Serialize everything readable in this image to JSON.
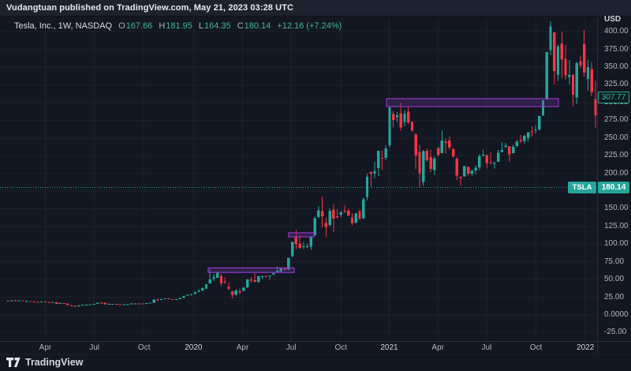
{
  "publish_bar": {
    "text": "Vudangtuan published on TradingView.com, May 21, 2023 03:28 UTC"
  },
  "legend": {
    "symbol_title": "Tesla, Inc., 1W, NASDAQ",
    "ohlc": [
      {
        "k": "O",
        "v": "167.66"
      },
      {
        "k": "H",
        "v": "181.95"
      },
      {
        "k": "L",
        "v": "164.35"
      },
      {
        "k": "C",
        "v": "180.14"
      }
    ],
    "change": "+12.16 (+7.24%)"
  },
  "price_axis": {
    "unit": "USD",
    "ticks": [
      {
        "label": "400.00",
        "price": 400
      },
      {
        "label": "375.00",
        "price": 375
      },
      {
        "label": "350.00",
        "price": 350
      },
      {
        "label": "325.00",
        "price": 325
      },
      {
        "label": "300.00",
        "price": 300
      },
      {
        "label": "275.00",
        "price": 275
      },
      {
        "label": "250.00",
        "price": 250
      },
      {
        "label": "225.00",
        "price": 225
      },
      {
        "label": "200.00",
        "price": 200
      },
      {
        "label": "175.00",
        "price": 175
      },
      {
        "label": "150.00",
        "price": 150
      },
      {
        "label": "125.00",
        "price": 125
      },
      {
        "label": "100.00",
        "price": 100
      },
      {
        "label": "75.00",
        "price": 75
      },
      {
        "label": "50.00",
        "price": 50
      },
      {
        "label": "25.00",
        "price": 25
      },
      {
        "label": "0.0000",
        "price": 0
      },
      {
        "label": "-25.00",
        "price": -25
      }
    ],
    "alert_label": "307.77",
    "symbol_label": "TSLA",
    "last_price_label": "180.14"
  },
  "time_axis": {
    "ticks": [
      {
        "label": "Apr",
        "week": 10,
        "year": false
      },
      {
        "label": "Jul",
        "week": 23.1,
        "year": false
      },
      {
        "label": "Oct",
        "week": 36.4,
        "year": false
      },
      {
        "label": "2020",
        "week": 49.6,
        "year": true
      },
      {
        "label": "Apr",
        "week": 62.7,
        "year": false
      },
      {
        "label": "Jul",
        "week": 75.7,
        "year": false
      },
      {
        "label": "Oct",
        "week": 89,
        "year": false
      },
      {
        "label": "2021",
        "week": 101.9,
        "year": true
      },
      {
        "label": "Apr",
        "week": 114.9,
        "year": false
      },
      {
        "label": "Jul",
        "week": 127.9,
        "year": false
      },
      {
        "label": "Oct",
        "week": 141.1,
        "year": false
      },
      {
        "label": "2022",
        "week": 154.3,
        "year": true
      }
    ]
  },
  "footer": {
    "brand": "TradingView"
  },
  "chart_data": {
    "type": "candlestick",
    "title": "Tesla, Inc., 1W, NASDAQ",
    "symbol": "TSLA",
    "interval": "1W",
    "currency": "USD",
    "ylim": [
      -37,
      421
    ],
    "grid": true,
    "current_price": 180.14,
    "alert_price": 307.77,
    "colors": {
      "up": "#26a69a",
      "down": "#f23645",
      "grid": "#1c202b",
      "zone_fill": "rgba(120,55,185,0.25)",
      "zone_border": "#9537c7",
      "price_line": "#26a69a"
    },
    "zones": [
      {
        "week_start": 53.5,
        "week_end": 76.5,
        "price_top": 66.5,
        "price_bottom": 60
      },
      {
        "week_start": 75.0,
        "week_end": 81.8,
        "price_top": 116,
        "price_bottom": 110.4
      },
      {
        "week_start": 101.2,
        "week_end": 147.1,
        "price_top": 305.5,
        "price_bottom": 294.3
      }
    ],
    "candles": [
      [
        20.2,
        20.4,
        18.9,
        19.8
      ],
      [
        19.9,
        21.1,
        19.4,
        20.9
      ],
      [
        20.9,
        21.3,
        20.2,
        20.4
      ],
      [
        20.5,
        20.9,
        20.2,
        20.6
      ],
      [
        20.6,
        20.7,
        19.5,
        19.6
      ],
      [
        19.7,
        20.8,
        19.4,
        19.7
      ],
      [
        19.6,
        19.7,
        18.4,
        19.0
      ],
      [
        19.0,
        19.6,
        18.2,
        18.4
      ],
      [
        18.4,
        18.9,
        17.7,
        18.3
      ],
      [
        18.2,
        18.9,
        17.5,
        18.7
      ],
      [
        18.8,
        19.3,
        18.0,
        18.3
      ],
      [
        18.3,
        18.5,
        17.6,
        17.9
      ],
      [
        17.9,
        18.3,
        17.5,
        18.2
      ],
      [
        17.8,
        17.9,
        15.5,
        15.7
      ],
      [
        15.8,
        17.2,
        15.5,
        17.0
      ],
      [
        16.8,
        16.9,
        15.9,
        16.0
      ],
      [
        15.9,
        16.1,
        13.7,
        14.1
      ],
      [
        13.6,
        14.0,
        12.3,
        12.7
      ],
      [
        12.8,
        13.1,
        11.9,
        12.3
      ],
      [
        12.2,
        13.7,
        11.8,
        13.6
      ],
      [
        13.7,
        14.6,
        13.4,
        14.3
      ],
      [
        14.4,
        15.3,
        14.2,
        14.6
      ],
      [
        14.7,
        15.2,
        14.4,
        14.9
      ],
      [
        15.1,
        15.9,
        14.8,
        15.5
      ],
      [
        15.5,
        17.4,
        15.4,
        17.2
      ],
      [
        17.3,
        17.8,
        16.6,
        17.1
      ],
      [
        17.1,
        17.7,
        15.0,
        15.2
      ],
      [
        15.3,
        16.2,
        15.1,
        15.6
      ],
      [
        15.4,
        15.8,
        15.1,
        15.7
      ],
      [
        15.6,
        15.7,
        14.5,
        14.7
      ],
      [
        14.8,
        15.2,
        14.0,
        14.1
      ],
      [
        14.1,
        15.2,
        14.0,
        15.0
      ],
      [
        15.0,
        15.5,
        14.6,
        15.2
      ],
      [
        15.2,
        16.5,
        15.2,
        16.3
      ],
      [
        16.3,
        16.5,
        15.8,
        16.1
      ],
      [
        16.1,
        16.4,
        15.5,
        16.1
      ],
      [
        16.0,
        16.4,
        14.9,
        15.4
      ],
      [
        15.4,
        16.6,
        15.2,
        16.5
      ],
      [
        16.5,
        17.3,
        16.3,
        17.1
      ],
      [
        17.1,
        22.4,
        16.8,
        21.9
      ],
      [
        21.9,
        22.6,
        20.2,
        20.9
      ],
      [
        21.0,
        23.1,
        20.9,
        22.5
      ],
      [
        22.5,
        23.6,
        22.3,
        23.5
      ],
      [
        23.5,
        24.1,
        21.7,
        22.2
      ],
      [
        22.2,
        22.4,
        21.5,
        22.0
      ],
      [
        22.0,
        22.6,
        21.8,
        22.4
      ],
      [
        22.4,
        23.9,
        22.2,
        23.9
      ],
      [
        24.0,
        27.1,
        23.9,
        27.0
      ],
      [
        27.2,
        29.0,
        27.0,
        28.7
      ],
      [
        28.7,
        29.7,
        27.3,
        29.5
      ],
      [
        29.6,
        33.2,
        29.5,
        31.9
      ],
      [
        32.2,
        36.5,
        32.1,
        34.0
      ],
      [
        34.3,
        39.1,
        33.9,
        37.7
      ],
      [
        37.4,
        43.5,
        36.2,
        43.4
      ],
      [
        44.7,
        64.6,
        44.2,
        49.9
      ],
      [
        50.7,
        57.3,
        48.0,
        53.3
      ],
      [
        52.3,
        61.2,
        52.2,
        60.1
      ],
      [
        55.3,
        57.7,
        40.8,
        44.5
      ],
      [
        47.3,
        53.7,
        43.8,
        46.9
      ],
      [
        40.4,
        45.3,
        36.1,
        36.4
      ],
      [
        33.3,
        34.1,
        23.4,
        28.5
      ],
      [
        28.4,
        36.4,
        27.4,
        34.3
      ],
      [
        33.7,
        37.3,
        29.8,
        32.0
      ],
      [
        34.1,
        39.7,
        33.6,
        38.2
      ],
      [
        38.9,
        50.5,
        38.0,
        50.3
      ],
      [
        50.1,
        53.3,
        44.9,
        48.3
      ],
      [
        49.0,
        58.4,
        45.5,
        46.8
      ],
      [
        47.0,
        55.4,
        45.2,
        54.6
      ],
      [
        53.3,
        56.0,
        50.5,
        54.5
      ],
      [
        55.3,
        55.9,
        53.0,
        54.4
      ],
      [
        54.6,
        55.7,
        49.7,
        55.7
      ],
      [
        57.2,
        59.7,
        56.0,
        59.0
      ],
      [
        60.0,
        68.5,
        59.9,
        62.4
      ],
      [
        61.1,
        67.3,
        59.8,
        66.7
      ],
      [
        66.9,
        67.4,
        62.7,
        64.0
      ],
      [
        64.3,
        80.9,
        63.3,
        80.6
      ],
      [
        83.3,
        103.7,
        81.3,
        103.0
      ],
      [
        110.6,
        119.7,
        92.8,
        100.1
      ],
      [
        100.8,
        112.4,
        93.3,
        94.7
      ],
      [
        96.1,
        103.3,
        93.0,
        96.9
      ],
      [
        96.2,
        101.0,
        94.3,
        96.9
      ],
      [
        96.5,
        110.7,
        91.7,
        110.0
      ],
      [
        112.5,
        138.7,
        112.0,
        136.7
      ],
      [
        138.3,
        154.0,
        136.9,
        147.6
      ],
      [
        146.7,
        167.5,
        124.0,
        139.4
      ],
      [
        130.0,
        137.3,
        110.0,
        124.2
      ],
      [
        127.3,
        150.3,
        125.1,
        147.4
      ],
      [
        148.7,
        156.5,
        117.1,
        135.8
      ],
      [
        139.5,
        149.6,
        136.1,
        138.4
      ],
      [
        141.6,
        146.9,
        138.4,
        144.7
      ],
      [
        147.3,
        155.3,
        143.8,
        146.6
      ],
      [
        147.0,
        149.8,
        139.7,
        140.2
      ],
      [
        137.5,
        143.7,
        126.4,
        129.3
      ],
      [
        130.1,
        144.6,
        129.7,
        143.3
      ],
      [
        146.6,
        149.0,
        134.0,
        136.2
      ],
      [
        136.4,
        166.0,
        135.0,
        163.2
      ],
      [
        166.7,
        199.6,
        161.4,
        195.3
      ],
      [
        202.0,
        202.6,
        180.4,
        199.7
      ],
      [
        199.7,
        216.3,
        192.8,
        203.3
      ],
      [
        207.3,
        231.7,
        196.0,
        231.7
      ],
      [
        222.0,
        232.3,
        204.8,
        220.6
      ],
      [
        221.7,
        239.6,
        218.3,
        235.2
      ],
      [
        239.8,
        294.8,
        236.7,
        293.3
      ],
      [
        284.0,
        288.0,
        264.7,
        275.4
      ],
      [
        279.0,
        286.7,
        272.2,
        282.2
      ],
      [
        284.8,
        300.1,
        259.8,
        264.5
      ],
      [
        272.7,
        289.8,
        266.3,
        284.1
      ],
      [
        286.9,
        293.5,
        269.3,
        272.0
      ],
      [
        273.0,
        273.3,
        258.8,
        260.4
      ],
      [
        254.5,
        256.7,
        206.3,
        225.2
      ],
      [
        230.0,
        240.4,
        179.8,
        199.3
      ],
      [
        187.7,
        233.0,
        182.0,
        231.2
      ],
      [
        231.9,
        235.3,
        216.3,
        218.3
      ],
      [
        223.0,
        233.3,
        202.0,
        206.2
      ],
      [
        204.3,
        224.0,
        197.2,
        220.6
      ],
      [
        235.9,
        236.9,
        224.3,
        225.7
      ],
      [
        228.3,
        260.3,
        227.8,
        246.6
      ],
      [
        244.7,
        249.3,
        227.9,
        243.1
      ],
      [
        246.3,
        252.3,
        233.2,
        236.5
      ],
      [
        234.3,
        236.3,
        221.7,
        224.1
      ],
      [
        220.7,
        223.0,
        190.7,
        196.6
      ],
      [
        194.8,
        196.3,
        182.3,
        193.6
      ],
      [
        195.7,
        210.7,
        195.3,
        210.3
      ],
      [
        209.3,
        210.3,
        196.7,
        199.7
      ],
      [
        199.7,
        205.0,
        196.0,
        203.3
      ],
      [
        203.9,
        211.3,
        199.0,
        207.8
      ],
      [
        208.3,
        227.7,
        204.5,
        224.0
      ],
      [
        224.7,
        233.3,
        224.0,
        226.3
      ],
      [
        226.0,
        226.3,
        206.8,
        214.7
      ],
      [
        215.7,
        229.7,
        212.4,
        214.5
      ],
      [
        214.0,
        216.7,
        206.7,
        214.4
      ],
      [
        216.3,
        233.0,
        216.0,
        229.1
      ],
      [
        230.0,
        244.3,
        229.7,
        233.0
      ],
      [
        237.3,
        243.3,
        236.0,
        239.1
      ],
      [
        238.0,
        238.3,
        216.3,
        226.8
      ],
      [
        228.3,
        240.0,
        228.0,
        237.3
      ],
      [
        238.3,
        246.8,
        236.7,
        244.5
      ],
      [
        246.8,
        254.2,
        243.0,
        245.4
      ],
      [
        245.8,
        254.0,
        241.2,
        253.2
      ],
      [
        250.5,
        258.3,
        244.5,
        258.1
      ],
      [
        259.3,
        266.3,
        252.0,
        258.5
      ],
      [
        260.9,
        268.3,
        256.4,
        261.8
      ],
      [
        262.2,
        281.3,
        260.3,
        281.0
      ],
      [
        281.7,
        303.3,
        281.3,
        303.2
      ],
      [
        305.7,
        371.7,
        303.3,
        371.3
      ],
      [
        373.8,
        414.5,
        366.8,
        407.4
      ],
      [
        399.1,
        399.3,
        326.0,
        344.5
      ],
      [
        339.5,
        382.1,
        330.3,
        379.0
      ],
      [
        383.2,
        400.2,
        335.1,
        360.6
      ],
      [
        361.7,
        381.3,
        332.5,
        338.3
      ],
      [
        336.3,
        360.3,
        325.3,
        339.0
      ],
      [
        339.0,
        340.3,
        295.0,
        310.9
      ],
      [
        307.0,
        357.7,
        297.8,
        355.7
      ],
      [
        358.3,
        366.3,
        348.7,
        352.3
      ],
      [
        382.6,
        402.7,
        336.7,
        342.3
      ],
      [
        333.3,
        360.3,
        316.8,
        349.9
      ],
      [
        347.2,
        357.3,
        309.0,
        314.6
      ],
      [
        304.7,
        331.3,
        264.0,
        282.1
      ]
    ]
  }
}
